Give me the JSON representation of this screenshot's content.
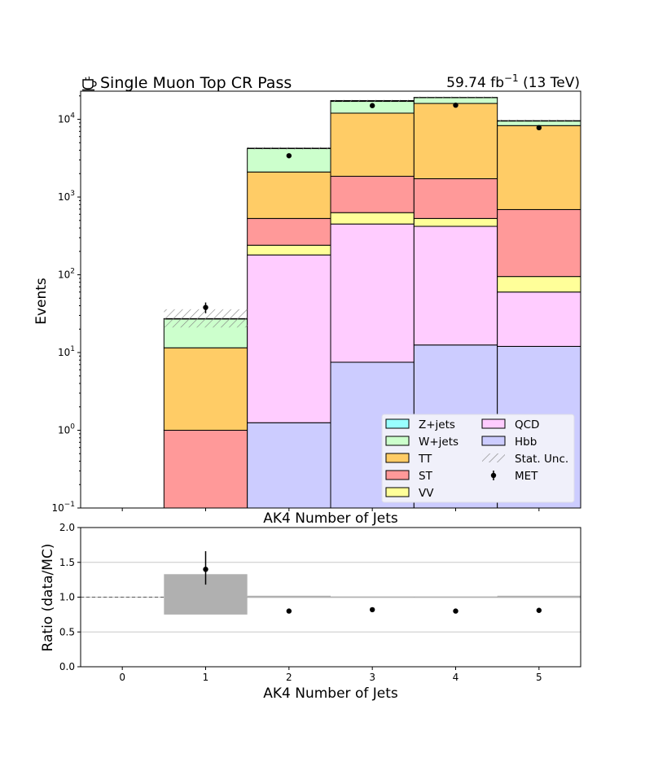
{
  "header": {
    "title": "Single Muon Top CR Pass",
    "title_icon": "coffee-cup-icon",
    "lumi_value": "59.74 fb",
    "lumi_exp": "−1",
    "lumi_energy": " (13 TeV)"
  },
  "chart_data": [
    {
      "type": "bar",
      "stacked": true,
      "log_y": true,
      "title": "Single Muon Top CR Pass",
      "xlabel": "AK4 Number of Jets",
      "ylabel": "Events",
      "categories": [
        "0",
        "1",
        "2",
        "3",
        "4",
        "5"
      ],
      "xlim": [
        -0.5,
        5.5
      ],
      "ylim": [
        0.1,
        23000
      ],
      "y_ticks": [
        {
          "value": 0.1,
          "base": "10",
          "exp": "−1"
        },
        {
          "value": 1,
          "base": "10",
          "exp": "0"
        },
        {
          "value": 10,
          "base": "10",
          "exp": "1"
        },
        {
          "value": 100,
          "base": "10",
          "exp": "2"
        },
        {
          "value": 1000,
          "base": "10",
          "exp": "3"
        },
        {
          "value": 10000,
          "base": "10",
          "exp": "4"
        }
      ],
      "series_cumulative_note": "values are cumulative stack tops per bin",
      "series": [
        {
          "name": "Hbb",
          "color": "#ccccff",
          "cumulative": [
            0,
            0,
            1.25,
            7.5,
            12.5,
            12
          ]
        },
        {
          "name": "QCD",
          "color": "#ffccff",
          "cumulative": [
            0,
            0,
            180,
            450,
            420,
            60
          ]
        },
        {
          "name": "VV",
          "color": "#ffff99",
          "cumulative": [
            0,
            0,
            240,
            630,
            530,
            95
          ]
        },
        {
          "name": "ST",
          "color": "#ff9999",
          "cumulative": [
            0,
            1.0,
            530,
            1850,
            1720,
            690
          ]
        },
        {
          "name": "TT",
          "color": "#ffcc66",
          "cumulative": [
            0,
            11.5,
            2100,
            12000,
            16000,
            8300
          ]
        },
        {
          "name": "W+jets",
          "color": "#ccffcc",
          "cumulative": [
            0,
            27,
            4200,
            17000,
            19000,
            9500
          ]
        },
        {
          "name": "Z+jets",
          "color": "#99ffff",
          "cumulative": [
            0,
            27.3,
            4250,
            17400,
            19100,
            9600
          ]
        }
      ],
      "stat_unc": [
        null,
        [
          21,
          36
        ],
        [
          4100,
          4400
        ],
        [
          16800,
          17800
        ],
        [
          18600,
          19600
        ],
        [
          9300,
          9900
        ]
      ],
      "data": {
        "name": "MET",
        "x": [
          1,
          2,
          3,
          4,
          5
        ],
        "y": [
          38,
          3400,
          15000,
          15200,
          7800
        ],
        "yerr": [
          6,
          58,
          122,
          123,
          88
        ]
      },
      "legend": {
        "position": "lower-right",
        "columns": [
          [
            "Z+jets",
            "W+jets",
            "TT",
            "ST",
            "VV"
          ],
          [
            "QCD",
            "Hbb",
            "Stat. Unc.",
            "MET"
          ]
        ]
      }
    },
    {
      "type": "scatter",
      "title": "",
      "xlabel": "AK4 Number of Jets",
      "ylabel": "Ratio (data/MC)",
      "categories": [
        "0",
        "1",
        "2",
        "3",
        "4",
        "5"
      ],
      "xlim": [
        -0.5,
        5.5
      ],
      "ylim": [
        0,
        2
      ],
      "y_ticks": [
        "0.0",
        "0.5",
        "1.0",
        "1.5",
        "2.0"
      ],
      "grid_lines": [
        0.5,
        1.0,
        1.5
      ],
      "unc_band": [
        null,
        [
          0.75,
          1.33
        ],
        [
          0.99,
          1.02
        ],
        [
          0.99,
          1.01
        ],
        [
          0.99,
          1.01
        ],
        [
          0.99,
          1.02
        ]
      ],
      "x": [
        1,
        2,
        3,
        4,
        5
      ],
      "y": [
        1.4,
        0.8,
        0.82,
        0.8,
        0.81
      ],
      "yerr_low": [
        0.22,
        0,
        0,
        0,
        0
      ],
      "yerr_high": [
        0.26,
        0,
        0,
        0,
        0
      ]
    }
  ],
  "colors": {
    "unc_band": "#b0b0b0",
    "hatch": "#808080",
    "legend_bg": "#f0f0fa"
  }
}
